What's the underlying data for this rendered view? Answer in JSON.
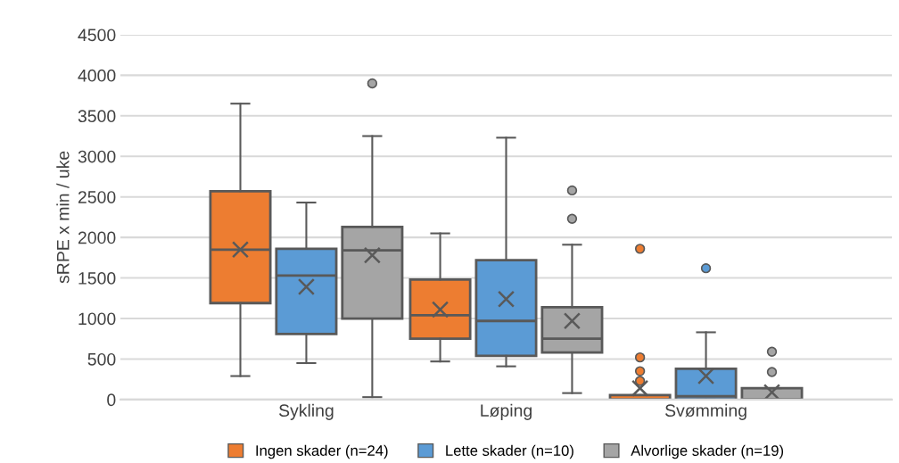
{
  "chart_data": {
    "type": "box",
    "ylabel": "sRPE x min / uke",
    "categories": [
      "Sykling",
      "Løping",
      "Svømming"
    ],
    "ylim": [
      0,
      4500
    ],
    "yticks": [
      0,
      500,
      1000,
      1500,
      2000,
      2500,
      3000,
      3500,
      4000,
      4500
    ],
    "grid": "y",
    "legend": "bottom",
    "series": [
      {
        "name": "Ingen skader (n=24)",
        "color": "#ed7d31",
        "boxes": [
          {
            "low": 290,
            "q1": 1190,
            "median": 1850,
            "q3": 2570,
            "high": 3650,
            "mean": 1850
          },
          {
            "low": 470,
            "q1": 750,
            "median": 1040,
            "q3": 1480,
            "high": 2050,
            "mean": 1110
          },
          {
            "low": 0,
            "q1": 0,
            "median": 0,
            "q3": 55,
            "high": 55,
            "mean": 140,
            "outliers": [
              1860,
              520,
              350,
              230
            ]
          }
        ]
      },
      {
        "name": "Lette skader (n=10)",
        "color": "#5b9bd5",
        "boxes": [
          {
            "low": 450,
            "q1": 810,
            "median": 1530,
            "q3": 1860,
            "high": 2430,
            "mean": 1390
          },
          {
            "low": 410,
            "q1": 540,
            "median": 970,
            "q3": 1720,
            "high": 3230,
            "mean": 1240
          },
          {
            "low": 0,
            "q1": 0,
            "median": 40,
            "q3": 380,
            "high": 830,
            "mean": 290,
            "outliers": [
              1620
            ]
          }
        ]
      },
      {
        "name": "Alvorlige skader (n=19)",
        "color": "#a5a5a5",
        "boxes": [
          {
            "low": 30,
            "q1": 1000,
            "median": 1840,
            "q3": 2130,
            "high": 3250,
            "mean": 1780,
            "outliers": [
              3900
            ]
          },
          {
            "low": 80,
            "q1": 580,
            "median": 750,
            "q3": 1140,
            "high": 1910,
            "mean": 970,
            "outliers": [
              2580,
              2230
            ]
          },
          {
            "low": 0,
            "q1": 0,
            "median": 0,
            "q3": 140,
            "high": 140,
            "mean": 90,
            "outliers": [
              590,
              340
            ]
          }
        ]
      }
    ]
  }
}
